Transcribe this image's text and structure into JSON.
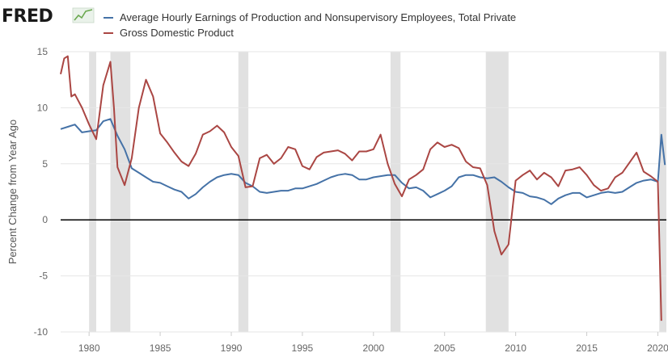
{
  "header": {
    "logo_text": "FRED",
    "logo_icon": "chart-line-icon"
  },
  "colors": {
    "series_earnings": "#4572a7",
    "series_gdp": "#aa4643",
    "recession": "#e1e1e1",
    "zero_line": "#000000",
    "grid": "#e6e6e6"
  },
  "chart_data": {
    "type": "line",
    "title": "",
    "xlabel": "",
    "ylabel": "Percent Change from Year Ago",
    "xlim": [
      1978,
      2020.6
    ],
    "ylim": [
      -10,
      15
    ],
    "y_ticks": [
      15,
      10,
      5,
      0,
      -5,
      -10
    ],
    "x_ticks": [
      1980,
      1985,
      1990,
      1995,
      2000,
      2005,
      2010,
      2015,
      2020
    ],
    "grid": "horizontal",
    "legend_position": "top",
    "recessions": [
      [
        1980.0,
        1980.5
      ],
      [
        1981.5,
        1982.9
      ],
      [
        1990.5,
        1991.2
      ],
      [
        2001.2,
        2001.9
      ],
      [
        2007.9,
        2009.5
      ],
      [
        2020.1,
        2020.6
      ]
    ],
    "series": [
      {
        "name": "Average Hourly Earnings of Production and Nonsupervisory Employees, Total Private",
        "color": "#4572a7",
        "points": [
          [
            1978.0,
            8.1
          ],
          [
            1978.5,
            8.3
          ],
          [
            1979.0,
            8.5
          ],
          [
            1979.5,
            7.8
          ],
          [
            1980.0,
            7.9
          ],
          [
            1980.5,
            8.0
          ],
          [
            1981.0,
            8.8
          ],
          [
            1981.5,
            9.0
          ],
          [
            1982.0,
            7.5
          ],
          [
            1982.5,
            6.3
          ],
          [
            1983.0,
            4.6
          ],
          [
            1983.5,
            4.2
          ],
          [
            1984.0,
            3.8
          ],
          [
            1984.5,
            3.4
          ],
          [
            1985.0,
            3.3
          ],
          [
            1985.5,
            3.0
          ],
          [
            1986.0,
            2.7
          ],
          [
            1986.5,
            2.5
          ],
          [
            1987.0,
            1.9
          ],
          [
            1987.5,
            2.3
          ],
          [
            1988.0,
            2.9
          ],
          [
            1988.5,
            3.4
          ],
          [
            1989.0,
            3.8
          ],
          [
            1989.5,
            4.0
          ],
          [
            1990.0,
            4.1
          ],
          [
            1990.5,
            4.0
          ],
          [
            1991.0,
            3.3
          ],
          [
            1991.5,
            3.0
          ],
          [
            1992.0,
            2.5
          ],
          [
            1992.5,
            2.4
          ],
          [
            1993.0,
            2.5
          ],
          [
            1993.5,
            2.6
          ],
          [
            1994.0,
            2.6
          ],
          [
            1994.5,
            2.8
          ],
          [
            1995.0,
            2.8
          ],
          [
            1995.5,
            3.0
          ],
          [
            1996.0,
            3.2
          ],
          [
            1996.5,
            3.5
          ],
          [
            1997.0,
            3.8
          ],
          [
            1997.5,
            4.0
          ],
          [
            1998.0,
            4.1
          ],
          [
            1998.5,
            4.0
          ],
          [
            1999.0,
            3.6
          ],
          [
            1999.5,
            3.6
          ],
          [
            2000.0,
            3.8
          ],
          [
            2000.5,
            3.9
          ],
          [
            2001.0,
            4.0
          ],
          [
            2001.5,
            4.0
          ],
          [
            2002.0,
            3.3
          ],
          [
            2002.5,
            2.8
          ],
          [
            2003.0,
            2.9
          ],
          [
            2003.5,
            2.6
          ],
          [
            2004.0,
            2.0
          ],
          [
            2004.5,
            2.3
          ],
          [
            2005.0,
            2.6
          ],
          [
            2005.5,
            3.0
          ],
          [
            2006.0,
            3.8
          ],
          [
            2006.5,
            4.0
          ],
          [
            2007.0,
            4.0
          ],
          [
            2007.5,
            3.8
          ],
          [
            2008.0,
            3.7
          ],
          [
            2008.5,
            3.8
          ],
          [
            2009.0,
            3.4
          ],
          [
            2009.5,
            2.9
          ],
          [
            2010.0,
            2.5
          ],
          [
            2010.5,
            2.4
          ],
          [
            2011.0,
            2.1
          ],
          [
            2011.5,
            2.0
          ],
          [
            2012.0,
            1.8
          ],
          [
            2012.5,
            1.4
          ],
          [
            2013.0,
            1.9
          ],
          [
            2013.5,
            2.2
          ],
          [
            2014.0,
            2.4
          ],
          [
            2014.5,
            2.4
          ],
          [
            2015.0,
            2.0
          ],
          [
            2015.5,
            2.2
          ],
          [
            2016.0,
            2.4
          ],
          [
            2016.5,
            2.5
          ],
          [
            2017.0,
            2.4
          ],
          [
            2017.5,
            2.5
          ],
          [
            2018.0,
            2.9
          ],
          [
            2018.5,
            3.3
          ],
          [
            2019.0,
            3.5
          ],
          [
            2019.5,
            3.6
          ],
          [
            2020.0,
            3.4
          ],
          [
            2020.25,
            7.6
          ],
          [
            2020.5,
            4.9
          ]
        ]
      },
      {
        "name": "Gross Domestic Product",
        "color": "#aa4643",
        "points": [
          [
            1978.0,
            13.0
          ],
          [
            1978.25,
            14.4
          ],
          [
            1978.5,
            14.6
          ],
          [
            1978.75,
            11.0
          ],
          [
            1979.0,
            11.2
          ],
          [
            1979.5,
            10.0
          ],
          [
            1980.0,
            8.5
          ],
          [
            1980.5,
            7.2
          ],
          [
            1981.0,
            12.0
          ],
          [
            1981.5,
            14.1
          ],
          [
            1981.75,
            10.0
          ],
          [
            1982.0,
            4.7
          ],
          [
            1982.5,
            3.1
          ],
          [
            1983.0,
            5.5
          ],
          [
            1983.5,
            10.0
          ],
          [
            1984.0,
            12.5
          ],
          [
            1984.5,
            11.0
          ],
          [
            1985.0,
            7.7
          ],
          [
            1985.5,
            6.9
          ],
          [
            1986.0,
            6.0
          ],
          [
            1986.5,
            5.2
          ],
          [
            1987.0,
            4.8
          ],
          [
            1987.5,
            5.9
          ],
          [
            1988.0,
            7.6
          ],
          [
            1988.5,
            7.9
          ],
          [
            1989.0,
            8.4
          ],
          [
            1989.5,
            7.8
          ],
          [
            1990.0,
            6.5
          ],
          [
            1990.5,
            5.7
          ],
          [
            1991.0,
            2.9
          ],
          [
            1991.5,
            3.0
          ],
          [
            1992.0,
            5.5
          ],
          [
            1992.5,
            5.8
          ],
          [
            1993.0,
            5.0
          ],
          [
            1993.5,
            5.5
          ],
          [
            1994.0,
            6.5
          ],
          [
            1994.5,
            6.3
          ],
          [
            1995.0,
            4.8
          ],
          [
            1995.5,
            4.5
          ],
          [
            1996.0,
            5.6
          ],
          [
            1996.5,
            6.0
          ],
          [
            1997.0,
            6.1
          ],
          [
            1997.5,
            6.2
          ],
          [
            1998.0,
            5.9
          ],
          [
            1998.5,
            5.3
          ],
          [
            1999.0,
            6.1
          ],
          [
            1999.5,
            6.1
          ],
          [
            2000.0,
            6.3
          ],
          [
            2000.5,
            7.6
          ],
          [
            2001.0,
            5.0
          ],
          [
            2001.5,
            3.2
          ],
          [
            2002.0,
            2.1
          ],
          [
            2002.5,
            3.6
          ],
          [
            2003.0,
            4.0
          ],
          [
            2003.5,
            4.5
          ],
          [
            2004.0,
            6.3
          ],
          [
            2004.5,
            6.9
          ],
          [
            2005.0,
            6.5
          ],
          [
            2005.5,
            6.7
          ],
          [
            2006.0,
            6.4
          ],
          [
            2006.5,
            5.2
          ],
          [
            2007.0,
            4.7
          ],
          [
            2007.5,
            4.6
          ],
          [
            2008.0,
            3.1
          ],
          [
            2008.5,
            -1.0
          ],
          [
            2009.0,
            -3.1
          ],
          [
            2009.5,
            -2.2
          ],
          [
            2010.0,
            3.5
          ],
          [
            2010.5,
            4.0
          ],
          [
            2011.0,
            4.4
          ],
          [
            2011.5,
            3.6
          ],
          [
            2012.0,
            4.2
          ],
          [
            2012.5,
            3.8
          ],
          [
            2013.0,
            3.0
          ],
          [
            2013.5,
            4.4
          ],
          [
            2014.0,
            4.5
          ],
          [
            2014.5,
            4.7
          ],
          [
            2015.0,
            4.0
          ],
          [
            2015.5,
            3.1
          ],
          [
            2016.0,
            2.6
          ],
          [
            2016.5,
            2.8
          ],
          [
            2017.0,
            3.8
          ],
          [
            2017.5,
            4.2
          ],
          [
            2018.0,
            5.1
          ],
          [
            2018.5,
            6.0
          ],
          [
            2019.0,
            4.3
          ],
          [
            2019.5,
            3.9
          ],
          [
            2020.0,
            3.4
          ],
          [
            2020.25,
            -9.0
          ]
        ]
      }
    ]
  }
}
